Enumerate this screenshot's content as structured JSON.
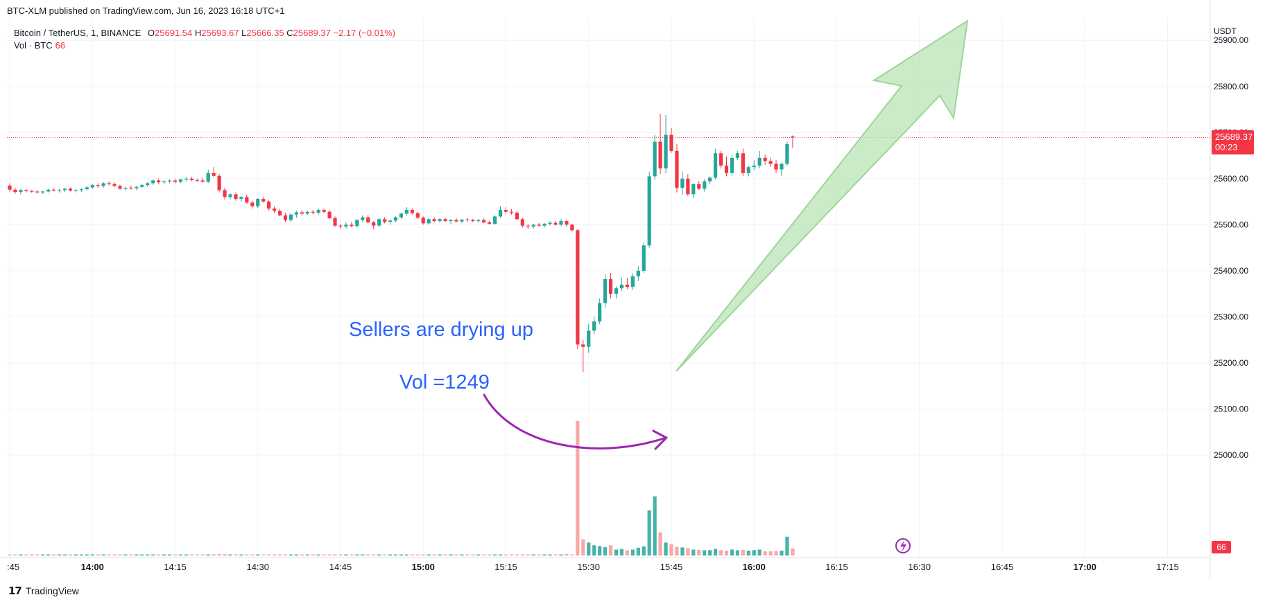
{
  "header": {
    "published_by": "BTC-XLM published on TradingView.com, Jun 16, 2023 16:18 UTC+1"
  },
  "legend": {
    "symbol": "Bitcoin / TetherUS, 1, BINANCE",
    "open_key": "O",
    "open": "25691.54",
    "high_key": "H",
    "high": "25693.67",
    "low_key": "L",
    "low": "25666.35",
    "close_key": "C",
    "close": "25689.37",
    "change": "−2.17 (−0.01%)",
    "vol_label": "Vol · BTC",
    "vol_value": "66"
  },
  "axis": {
    "unit": "USDT",
    "price_tag": "25689.37",
    "countdown": "00:23",
    "vol_tag": "66"
  },
  "annotations": {
    "sellers": "Sellers are drying up",
    "vol": "Vol =1249"
  },
  "footer": {
    "brand": "TradingView",
    "mark": "17"
  },
  "colors": {
    "up": "#26a69a",
    "down": "#f23645",
    "vol_up": "#26a69a",
    "vol_down": "#f7a9a7",
    "arrow_fill": "#b9e3b4",
    "arrow_stroke": "#9fd49a",
    "curve": "#9c27b0",
    "annotation_text": "#2962ff"
  },
  "chart_data": {
    "type": "candlestick",
    "interval": "1m",
    "y_axis": {
      "ticks": [
        25000,
        25100,
        25200,
        25300,
        25400,
        25500,
        25600,
        25700,
        25800,
        25900
      ],
      "tick_labels": [
        "25000.00",
        "25100.00",
        "25200.00",
        "25300.00",
        "25400.00",
        "25500.00",
        "25600.00",
        "25700.00",
        "25800.00",
        "25900.00"
      ]
    },
    "x_axis": {
      "ticks": [
        ":45",
        "14:00",
        "14:15",
        "14:30",
        "14:45",
        "15:00",
        "15:15",
        "15:30",
        "15:45",
        "16:00",
        "16:15",
        "16:30",
        "16:45",
        "17:00",
        "17:15"
      ],
      "bold_ticks": [
        "14:00",
        "15:00",
        "16:00",
        "17:00"
      ]
    },
    "time_start": "13:45",
    "last_price": 25689.37,
    "grid": true,
    "candles": [
      [
        25585,
        25590,
        25572,
        25576,
        5
      ],
      [
        25576,
        25580,
        25567,
        25571,
        4
      ],
      [
        25571,
        25578,
        25566,
        25575,
        6
      ],
      [
        25575,
        25578,
        25570,
        25573,
        5
      ],
      [
        25573,
        25576,
        25569,
        25572,
        4
      ],
      [
        25572,
        25575,
        25568,
        25570,
        4
      ],
      [
        25570,
        25574,
        25567,
        25572,
        5
      ],
      [
        25572,
        25578,
        25570,
        25576,
        5
      ],
      [
        25576,
        25580,
        25572,
        25574,
        4
      ],
      [
        25574,
        25577,
        25570,
        25575,
        4
      ],
      [
        25575,
        25580,
        25571,
        25578,
        5
      ],
      [
        25578,
        25581,
        25572,
        25574,
        6
      ],
      [
        25574,
        25578,
        25570,
        25575,
        4
      ],
      [
        25575,
        25579,
        25571,
        25577,
        5
      ],
      [
        25577,
        25584,
        25574,
        25581,
        6
      ],
      [
        25581,
        25588,
        25578,
        25586,
        7
      ],
      [
        25586,
        25590,
        25580,
        25584,
        6
      ],
      [
        25584,
        25592,
        25580,
        25590,
        8
      ],
      [
        25590,
        25594,
        25585,
        25588,
        5
      ],
      [
        25588,
        25592,
        25582,
        25584,
        4
      ],
      [
        25584,
        25587,
        25576,
        25578,
        6
      ],
      [
        25578,
        25582,
        25574,
        25580,
        5
      ],
      [
        25580,
        25585,
        25576,
        25579,
        4
      ],
      [
        25579,
        25584,
        25575,
        25582,
        6
      ],
      [
        25582,
        25588,
        25579,
        25586,
        5
      ],
      [
        25586,
        25592,
        25582,
        25590,
        5
      ],
      [
        25590,
        25598,
        25586,
        25596,
        7
      ],
      [
        25596,
        25600,
        25588,
        25592,
        5
      ],
      [
        25592,
        25596,
        25588,
        25594,
        4
      ],
      [
        25594,
        25598,
        25590,
        25596,
        5
      ],
      [
        25596,
        25600,
        25590,
        25593,
        4
      ],
      [
        25593,
        25600,
        25590,
        25598,
        6
      ],
      [
        25598,
        25603,
        25594,
        25600,
        5
      ],
      [
        25600,
        25604,
        25594,
        25597,
        5
      ],
      [
        25597,
        25600,
        25592,
        25596,
        4
      ],
      [
        25596,
        25602,
        25592,
        25593,
        5
      ],
      [
        25593,
        25620,
        25590,
        25612,
        9
      ],
      [
        25612,
        25625,
        25603,
        25606,
        11
      ],
      [
        25606,
        25610,
        25570,
        25575,
        15
      ],
      [
        25575,
        25580,
        25555,
        25560,
        12
      ],
      [
        25560,
        25568,
        25555,
        25566,
        8
      ],
      [
        25566,
        25570,
        25552,
        25556,
        9
      ],
      [
        25556,
        25562,
        25550,
        25560,
        8
      ],
      [
        25560,
        25565,
        25545,
        25548,
        10
      ],
      [
        25548,
        25552,
        25535,
        25540,
        9
      ],
      [
        25540,
        25558,
        25536,
        25556,
        9
      ],
      [
        25556,
        25560,
        25548,
        25550,
        7
      ],
      [
        25550,
        25554,
        25530,
        25535,
        8
      ],
      [
        25535,
        25540,
        25525,
        25530,
        9
      ],
      [
        25530,
        25534,
        25518,
        25520,
        10
      ],
      [
        25520,
        25526,
        25505,
        25510,
        8
      ],
      [
        25510,
        25525,
        25505,
        25522,
        9
      ],
      [
        25522,
        25530,
        25515,
        25527,
        8
      ],
      [
        25527,
        25532,
        25520,
        25524,
        6
      ],
      [
        25524,
        25530,
        25520,
        25528,
        6
      ],
      [
        25528,
        25532,
        25522,
        25526,
        5
      ],
      [
        25526,
        25535,
        25522,
        25532,
        6
      ],
      [
        25532,
        25535,
        25525,
        25528,
        6
      ],
      [
        25528,
        25532,
        25512,
        25514,
        9
      ],
      [
        25514,
        25518,
        25495,
        25498,
        11
      ],
      [
        25498,
        25502,
        25490,
        25496,
        8
      ],
      [
        25496,
        25505,
        25492,
        25500,
        7
      ],
      [
        25500,
        25506,
        25494,
        25497,
        6
      ],
      [
        25497,
        25512,
        25494,
        25510,
        8
      ],
      [
        25510,
        25520,
        25506,
        25516,
        7
      ],
      [
        25516,
        25520,
        25503,
        25505,
        7
      ],
      [
        25505,
        25508,
        25490,
        25498,
        9
      ],
      [
        25498,
        25515,
        25495,
        25512,
        8
      ],
      [
        25512,
        25516,
        25503,
        25506,
        6
      ],
      [
        25506,
        25512,
        25500,
        25509,
        6
      ],
      [
        25509,
        25518,
        25505,
        25516,
        7
      ],
      [
        25516,
        25526,
        25512,
        25524,
        8
      ],
      [
        25524,
        25538,
        25520,
        25532,
        8
      ],
      [
        25532,
        25535,
        25522,
        25525,
        6
      ],
      [
        25525,
        25528,
        25512,
        25515,
        7
      ],
      [
        25515,
        25518,
        25500,
        25503,
        8
      ],
      [
        25503,
        25515,
        25500,
        25512,
        6
      ],
      [
        25512,
        25516,
        25505,
        25508,
        5
      ],
      [
        25508,
        25514,
        25504,
        25512,
        5
      ],
      [
        25512,
        25516,
        25506,
        25508,
        5
      ],
      [
        25508,
        25512,
        25502,
        25510,
        5
      ],
      [
        25510,
        25514,
        25505,
        25507,
        5
      ],
      [
        25507,
        25512,
        25503,
        25511,
        5
      ],
      [
        25511,
        25515,
        25506,
        25510,
        4
      ],
      [
        25510,
        25513,
        25505,
        25508,
        5
      ],
      [
        25508,
        25512,
        25504,
        25510,
        4
      ],
      [
        25510,
        25514,
        25503,
        25505,
        5
      ],
      [
        25505,
        25509,
        25500,
        25502,
        6
      ],
      [
        25502,
        25520,
        25500,
        25518,
        8
      ],
      [
        25518,
        25540,
        25515,
        25532,
        8
      ],
      [
        25532,
        25538,
        25524,
        25528,
        6
      ],
      [
        25528,
        25534,
        25522,
        25526,
        5
      ],
      [
        25526,
        25530,
        25510,
        25512,
        7
      ],
      [
        25512,
        25515,
        25494,
        25498,
        10
      ],
      [
        25498,
        25502,
        25490,
        25496,
        7
      ],
      [
        25496,
        25502,
        25492,
        25500,
        6
      ],
      [
        25500,
        25504,
        25495,
        25498,
        5
      ],
      [
        25498,
        25504,
        25494,
        25502,
        5
      ],
      [
        25502,
        25508,
        25498,
        25504,
        6
      ],
      [
        25504,
        25508,
        25498,
        25500,
        6
      ],
      [
        25500,
        25512,
        25497,
        25508,
        8
      ],
      [
        25508,
        25510,
        25495,
        25500,
        14
      ],
      [
        25500,
        25502,
        25485,
        25488,
        9
      ],
      [
        25488,
        25490,
        25230,
        25240,
        1249
      ],
      [
        25240,
        25250,
        25180,
        25235,
        150
      ],
      [
        25235,
        25285,
        25222,
        25270,
        120
      ],
      [
        25270,
        25300,
        25262,
        25290,
        95
      ],
      [
        25290,
        25340,
        25284,
        25330,
        88
      ],
      [
        25330,
        25392,
        25320,
        25382,
        78
      ],
      [
        25382,
        25395,
        25340,
        25350,
        95
      ],
      [
        25350,
        25366,
        25340,
        25362,
        55
      ],
      [
        25362,
        25385,
        25356,
        25370,
        60
      ],
      [
        25370,
        25385,
        25360,
        25365,
        48
      ],
      [
        25365,
        25395,
        25358,
        25388,
        55
      ],
      [
        25388,
        25410,
        25378,
        25400,
        72
      ],
      [
        25400,
        25462,
        25395,
        25455,
        85
      ],
      [
        25455,
        25615,
        25450,
        25605,
        420
      ],
      [
        25605,
        25695,
        25598,
        25680,
        550
      ],
      [
        25680,
        25740,
        25610,
        25622,
        215
      ],
      [
        25622,
        25738,
        25612,
        25695,
        120
      ],
      [
        25695,
        25710,
        25656,
        25660,
        105
      ],
      [
        25660,
        25675,
        25570,
        25580,
        80
      ],
      [
        25580,
        25615,
        25565,
        25600,
        75
      ],
      [
        25600,
        25610,
        25562,
        25566,
        68
      ],
      [
        25566,
        25590,
        25558,
        25588,
        55
      ],
      [
        25588,
        25595,
        25575,
        25578,
        52
      ],
      [
        25578,
        25598,
        25572,
        25594,
        48
      ],
      [
        25594,
        25605,
        25588,
        25602,
        50
      ],
      [
        25602,
        25665,
        25598,
        25655,
        62
      ],
      [
        25655,
        25660,
        25622,
        25628,
        50
      ],
      [
        25628,
        25648,
        25605,
        25612,
        45
      ],
      [
        25612,
        25650,
        25606,
        25645,
        55
      ],
      [
        25645,
        25660,
        25640,
        25655,
        48
      ],
      [
        25655,
        25665,
        25606,
        25612,
        52
      ],
      [
        25612,
        25628,
        25605,
        25625,
        45
      ],
      [
        25625,
        25640,
        25618,
        25628,
        50
      ],
      [
        25628,
        25660,
        25622,
        25645,
        55
      ],
      [
        25645,
        25652,
        25630,
        25638,
        40
      ],
      [
        25638,
        25646,
        25625,
        25632,
        38
      ],
      [
        25632,
        25640,
        25612,
        25620,
        42
      ],
      [
        25620,
        25635,
        25605,
        25632,
        45
      ],
      [
        25632,
        25680,
        25628,
        25675,
        175
      ],
      [
        25691.54,
        25693.67,
        25666.35,
        25689.37,
        66
      ]
    ]
  }
}
